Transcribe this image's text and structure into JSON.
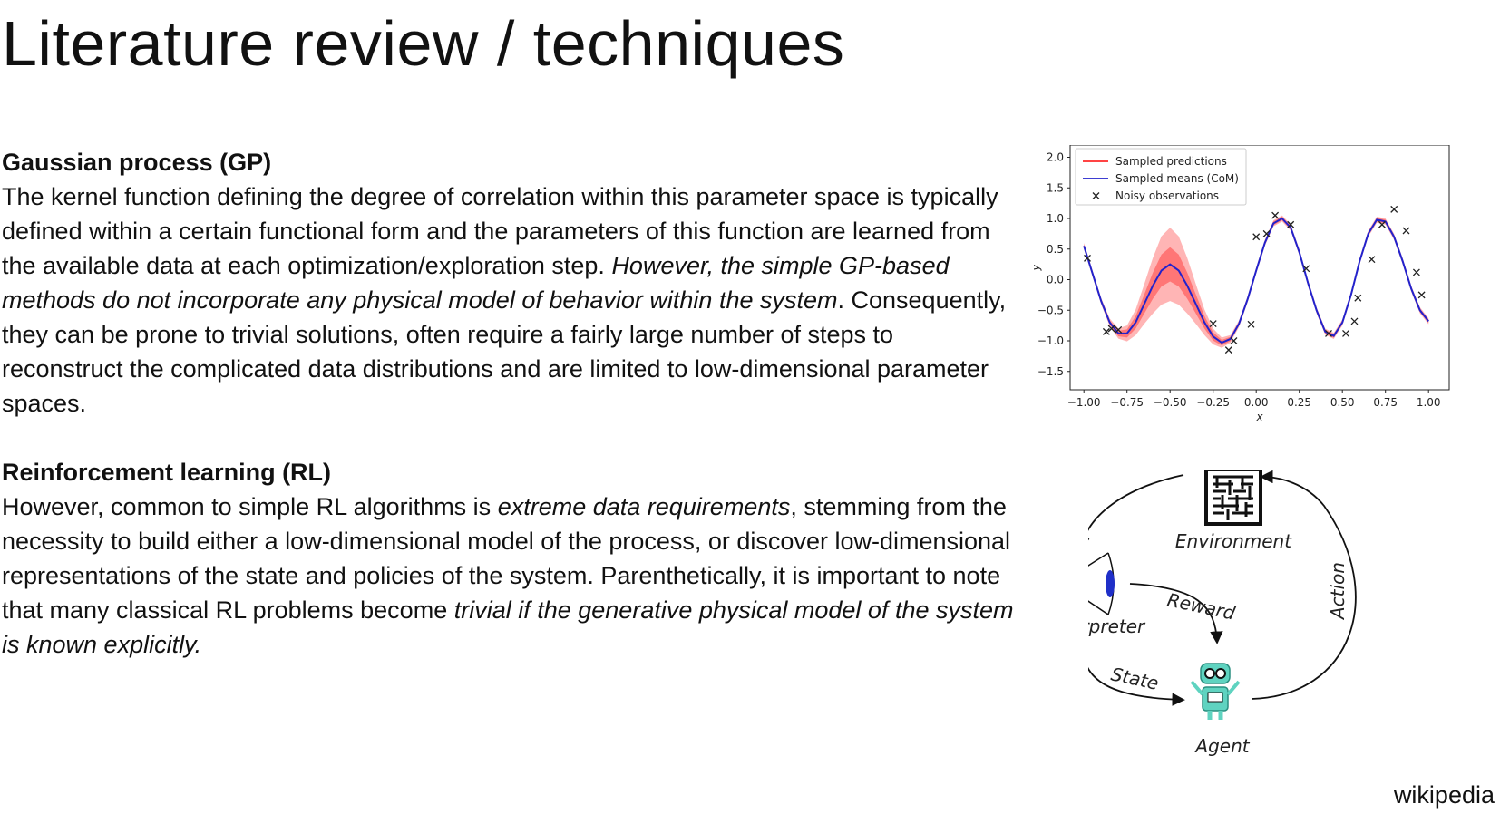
{
  "title": "Literature review / techniques",
  "sections": [
    {
      "heading": "Gaussian process (GP)",
      "body": [
        {
          "text": "The kernel function defining the degree of correlation within this parameter space is typically defined within a certain functional form and the parameters of this function are learned from the available data at each optimization/exploration step. ",
          "italic": false
        },
        {
          "text": "However, the simple GP-based methods do not incorporate any physical model of behavior within the system",
          "italic": true
        },
        {
          "text": ". Consequently, they can be prone to trivial solutions, often require a fairly large number of steps to reconstruct the complicated data distributions and are limited to low-dimensional parameter spaces.",
          "italic": false
        }
      ]
    },
    {
      "heading": "Reinforcement learning  (RL)",
      "body": [
        {
          "text": "However, common to simple RL algorithms is ",
          "italic": false
        },
        {
          "text": "extreme data requirements",
          "italic": true
        },
        {
          "text": ", stemming from the necessity to build either a low-dimensional model of the process, or discover low-dimensional representations of the state and policies of the system. Parenthetically, it is important to note that many classical RL problems become ",
          "italic": false
        },
        {
          "text": "trivial if the generative physical model of the system is known explicitly.",
          "italic": true
        }
      ]
    }
  ],
  "credit": "wikipedia",
  "chart_data": {
    "type": "line",
    "xlabel": "x",
    "ylabel": "y",
    "xlim": [
      -1.08,
      1.12
    ],
    "ylim": [
      -1.8,
      2.2
    ],
    "xticks": [
      "−1.00",
      "−0.75",
      "−0.50",
      "−0.25",
      "0.00",
      "0.25",
      "0.50",
      "0.75",
      "1.00"
    ],
    "xtick_values": [
      -1.0,
      -0.75,
      -0.5,
      -0.25,
      0.0,
      0.25,
      0.5,
      0.75,
      1.0
    ],
    "yticks": [
      "2.0",
      "1.5",
      "1.0",
      "0.5",
      "0.0",
      "−0.5",
      "−1.0",
      "−1.5"
    ],
    "ytick_values": [
      2.0,
      1.5,
      1.0,
      0.5,
      0.0,
      -0.5,
      -1.0,
      -1.5
    ],
    "legend_position": "top-left",
    "series": [
      {
        "name": "Sampled predictions",
        "color": "#ff2a2a",
        "style": "band"
      },
      {
        "name": "Sampled means (CoM)",
        "color": "#2222cc",
        "style": "line",
        "x": [
          -1.0,
          -0.95,
          -0.9,
          -0.85,
          -0.8,
          -0.75,
          -0.7,
          -0.65,
          -0.6,
          -0.55,
          -0.5,
          -0.45,
          -0.4,
          -0.35,
          -0.3,
          -0.25,
          -0.2,
          -0.15,
          -0.1,
          -0.05,
          0.0,
          0.05,
          0.1,
          0.15,
          0.2,
          0.25,
          0.3,
          0.35,
          0.4,
          0.45,
          0.5,
          0.55,
          0.6,
          0.65,
          0.7,
          0.75,
          0.8,
          0.85,
          0.9,
          0.95,
          1.0
        ],
        "y": [
          0.55,
          0.1,
          -0.35,
          -0.7,
          -0.88,
          -0.88,
          -0.7,
          -0.4,
          -0.1,
          0.15,
          0.25,
          0.15,
          -0.1,
          -0.4,
          -0.7,
          -0.93,
          -1.03,
          -0.97,
          -0.72,
          -0.32,
          0.15,
          0.6,
          0.92,
          1.0,
          0.85,
          0.45,
          -0.05,
          -0.5,
          -0.85,
          -0.92,
          -0.7,
          -0.25,
          0.3,
          0.75,
          0.98,
          0.95,
          0.7,
          0.3,
          -0.15,
          -0.5,
          -0.68
        ]
      }
    ],
    "observations": {
      "name": "Noisy observations",
      "x": [
        -0.98,
        -0.87,
        -0.84,
        -0.8,
        -0.25,
        -0.16,
        -0.13,
        -0.03,
        0.0,
        0.06,
        0.11,
        0.2,
        0.29,
        0.42,
        0.52,
        0.57,
        0.59,
        0.67,
        0.73,
        0.8,
        0.87,
        0.93,
        0.96
      ],
      "y": [
        0.35,
        -0.85,
        -0.8,
        -0.82,
        -0.72,
        -1.15,
        -1.0,
        -0.73,
        0.7,
        0.75,
        1.05,
        0.9,
        0.18,
        -0.88,
        -0.88,
        -0.68,
        -0.3,
        0.33,
        0.9,
        1.15,
        0.8,
        0.12,
        -0.25
      ]
    }
  },
  "diagram": {
    "nodes": {
      "environment": "Environment",
      "interpreter": "Interpreter",
      "agent": "Agent"
    },
    "edges": {
      "reward": "Reward",
      "state": "State",
      "action": "Action"
    }
  }
}
